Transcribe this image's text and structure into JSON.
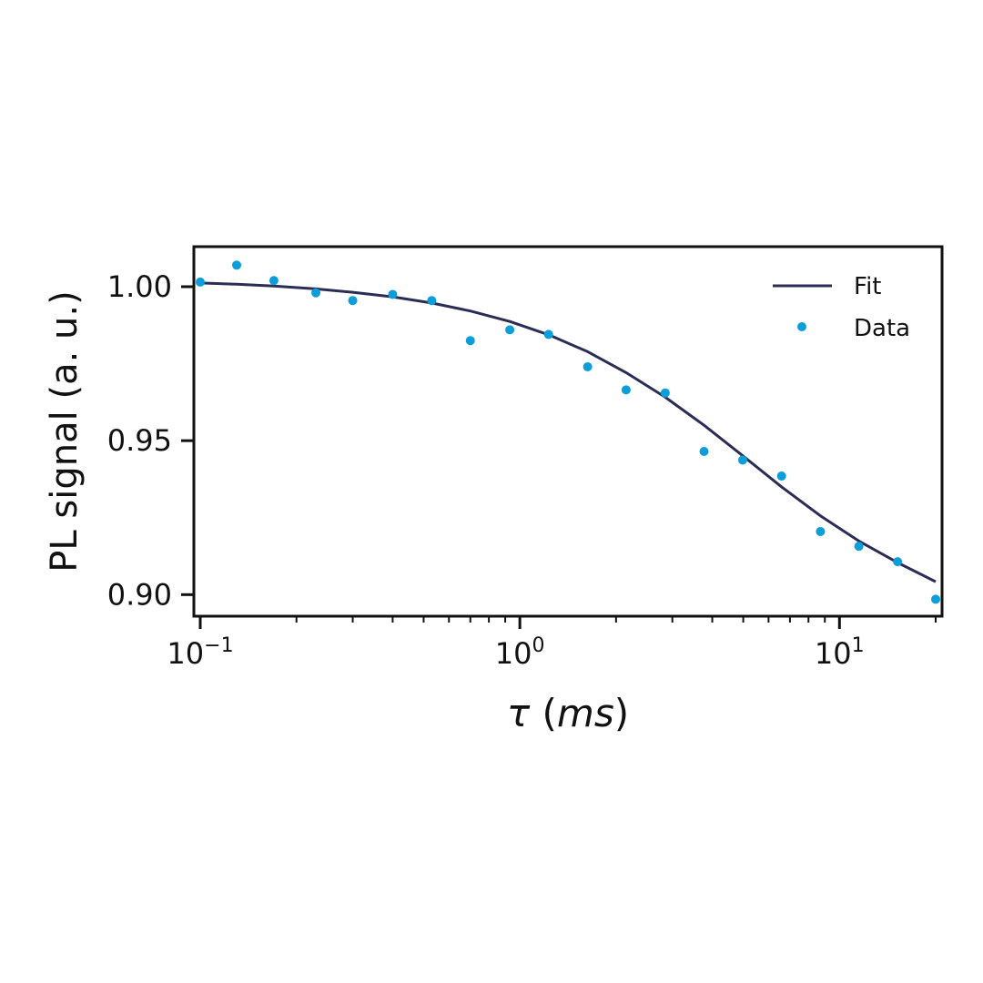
{
  "chart_data": {
    "type": "scatter",
    "xlabel": {
      "symbol": "τ",
      "open": " (",
      "unit": "ms",
      "close": ")"
    },
    "ylabel": "PL signal (a. u.)",
    "xscale": "log",
    "xlim": [
      0.1,
      20
    ],
    "ylim": [
      0.893,
      1.013
    ],
    "xticks": [
      {
        "value": 0.1,
        "base": "10",
        "exp": "−1"
      },
      {
        "value": 1,
        "base": "10",
        "exp": "0"
      },
      {
        "value": 10,
        "base": "10",
        "exp": "1"
      }
    ],
    "yticks": [
      {
        "value": 0.9,
        "label": "0.90"
      },
      {
        "value": 0.95,
        "label": "0.95"
      },
      {
        "value": 1.0,
        "label": "1.00"
      }
    ],
    "grid": false,
    "legend_position": "top-right",
    "series": [
      {
        "name": "Fit",
        "kind": "line",
        "color": "#2b2d55",
        "x": [
          0.1,
          0.13,
          0.17,
          0.23,
          0.3,
          0.4,
          0.53,
          0.7,
          0.93,
          1.23,
          1.63,
          2.15,
          2.85,
          3.77,
          4.98,
          6.59,
          8.72,
          11.5,
          15.2,
          20
        ],
        "y": [
          1.0012,
          1.0008,
          1.0002,
          0.9993,
          0.9982,
          0.9967,
          0.9947,
          0.9921,
          0.9887,
          0.9844,
          0.9789,
          0.9721,
          0.9641,
          0.955,
          0.9451,
          0.935,
          0.9256,
          0.9174,
          0.9104,
          0.9042
        ]
      },
      {
        "name": "Data",
        "kind": "scatter",
        "color": "#0b9ed9",
        "x": [
          0.1,
          0.13,
          0.17,
          0.23,
          0.3,
          0.4,
          0.53,
          0.7,
          0.93,
          1.23,
          1.63,
          2.15,
          2.85,
          3.77,
          4.98,
          6.59,
          8.72,
          11.5,
          15.2,
          20
        ],
        "y": [
          1.0015,
          1.007,
          1.002,
          0.998,
          0.9955,
          0.9975,
          0.9955,
          0.9825,
          0.986,
          0.9845,
          0.974,
          0.9665,
          0.9655,
          0.9465,
          0.9437,
          0.9385,
          0.9205,
          0.9157,
          0.9107,
          0.8985
        ]
      }
    ]
  }
}
